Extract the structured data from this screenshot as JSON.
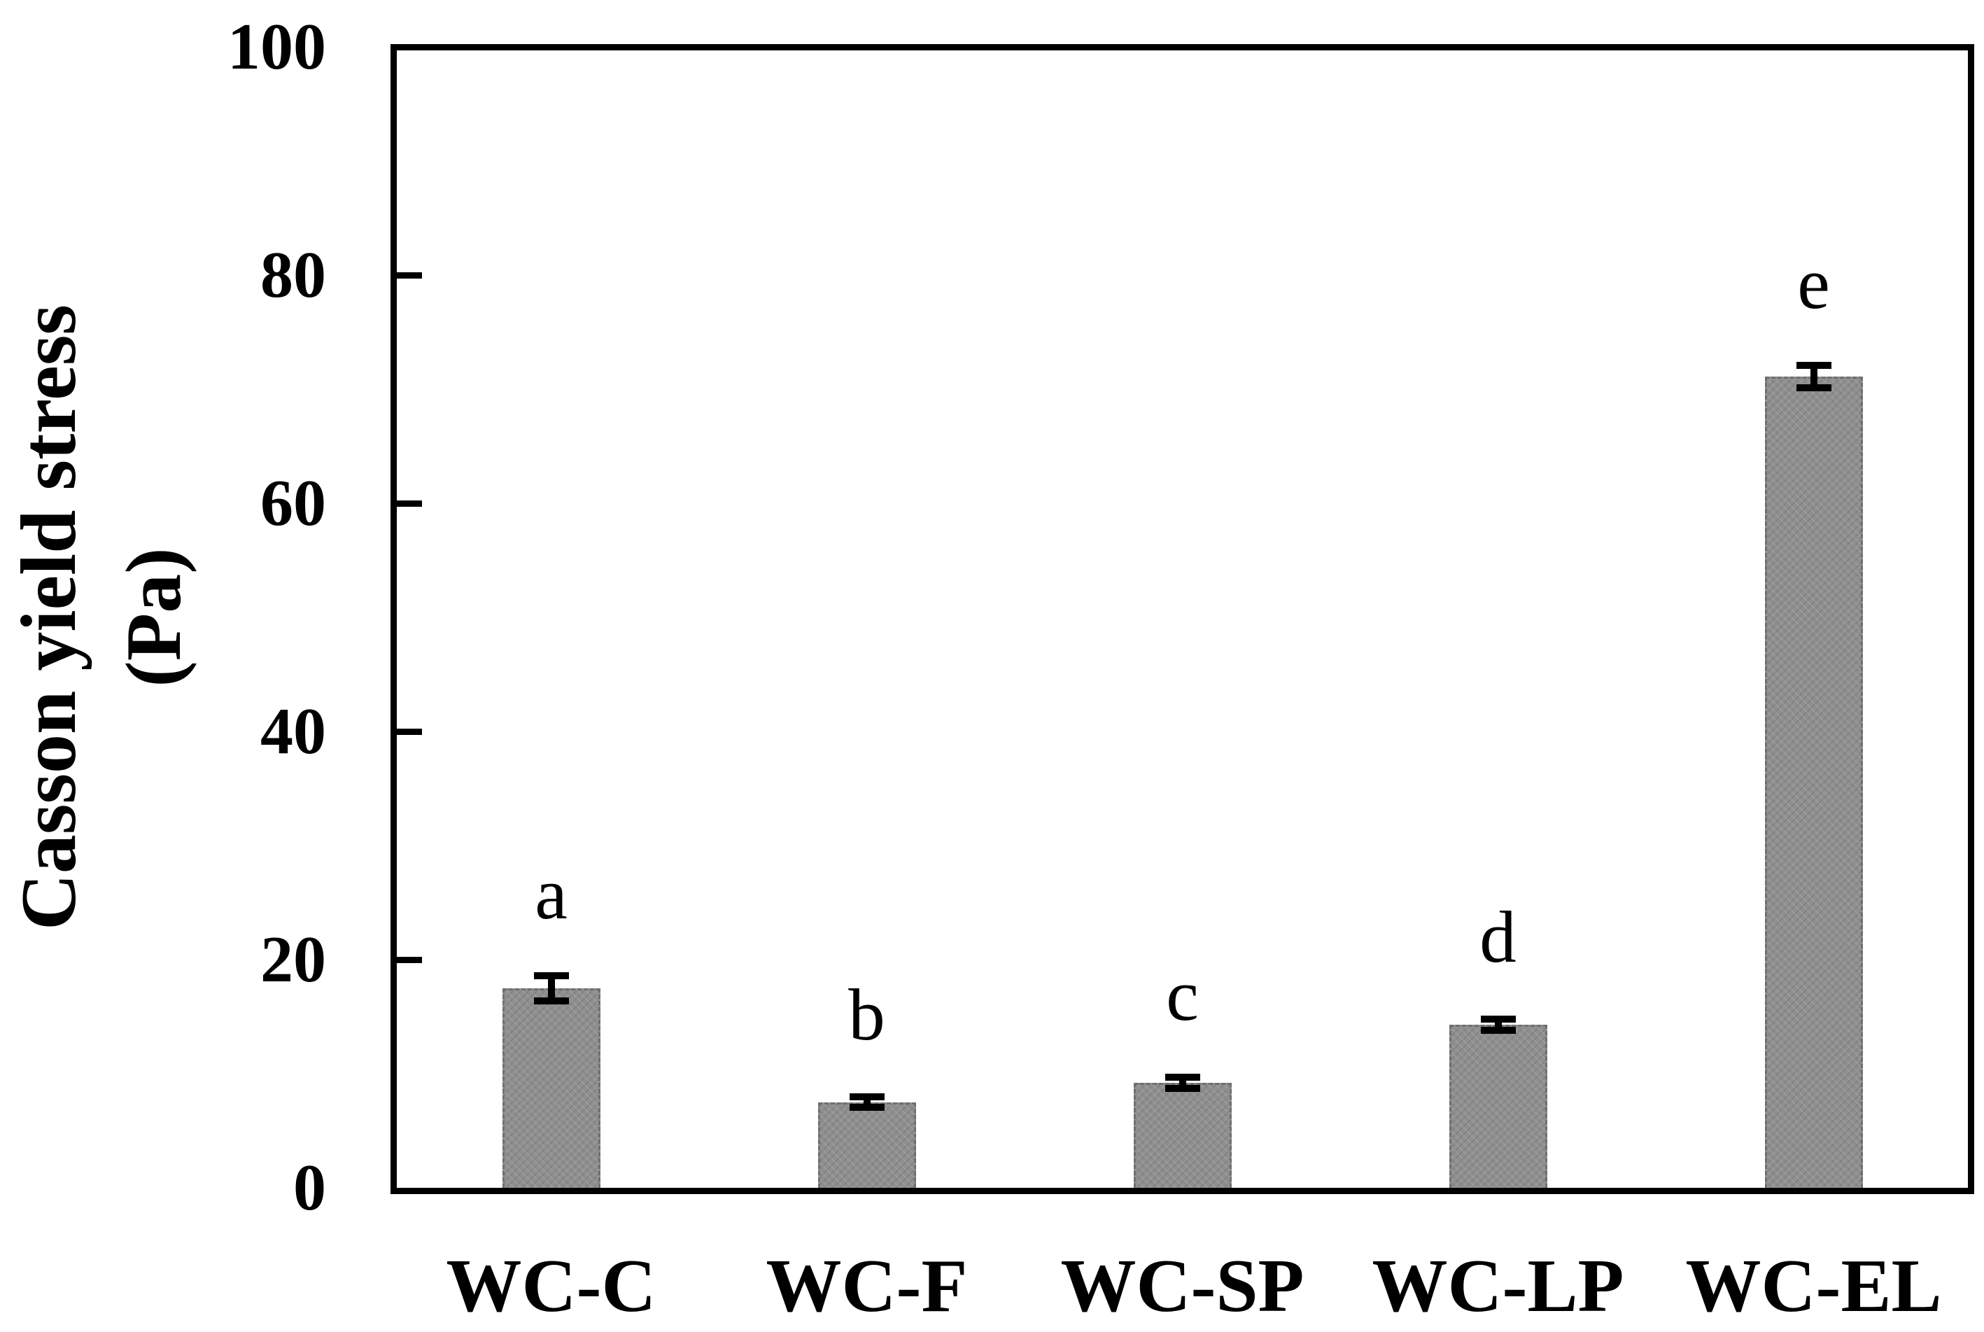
{
  "figure": {
    "background": "#ffffff",
    "axis_color": "#000000",
    "bar_fill": "#8f8f8f",
    "bar_edge": "#6f6f6f",
    "error_bar_color": "#000000",
    "text_color": "#000000"
  },
  "chart_data": {
    "type": "bar",
    "title": "",
    "xlabel": "",
    "ylabel": "Casson yield stress (Pa)",
    "ylabel_line1": "Casson yield stress",
    "ylabel_line2": "(Pa)",
    "categories": [
      "WC-C",
      "WC-F",
      "WC-SP",
      "WC-LP",
      "WC-EL"
    ],
    "values": [
      17.5,
      7.5,
      9.2,
      14.3,
      71.1
    ],
    "errors": [
      1.1,
      0.45,
      0.5,
      0.5,
      1.0
    ],
    "significance_letters": [
      "a",
      "b",
      "c",
      "d",
      "e"
    ],
    "ylim": [
      0,
      100
    ],
    "yticks": [
      0,
      20,
      40,
      60,
      80,
      100
    ],
    "tick_direction": "in",
    "grid": false,
    "legend": "none",
    "bar_color": "#8f8f8f",
    "error_bars": true
  }
}
